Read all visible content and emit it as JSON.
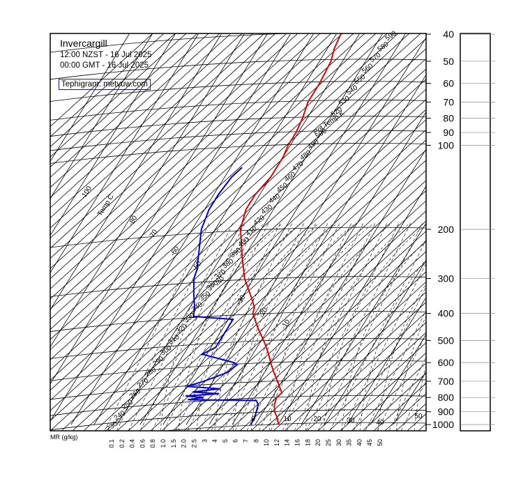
{
  "header": {
    "title": "Invercargill",
    "local_time": "12:00 NZST - 16 Jul 2025",
    "utc_time": "00:00 GMT - 16 Jul 2025",
    "credit": "Tephigram: metvuw.com"
  },
  "chart_data": {
    "type": "line",
    "subtype": "tephigram",
    "pressure_axis": {
      "ticks": [
        40,
        50,
        60,
        70,
        80,
        90,
        100,
        200,
        300,
        400,
        500,
        600,
        700,
        800,
        900,
        1000
      ],
      "range": [
        40,
        1000
      ],
      "scale": "log"
    },
    "mixing_ratio_axis": {
      "label": "MR (g/kg)",
      "ticks": [
        "0.1",
        "0.2",
        "0.4",
        "0.6",
        "0.8",
        "1.0",
        "1.5",
        "2.0",
        "2.5",
        "3",
        "4",
        "5",
        "6",
        "7",
        "8",
        "10",
        "12",
        "14",
        "16",
        "18",
        "20",
        "25",
        "30",
        "35",
        "40",
        "45",
        "50"
      ]
    },
    "isotherm_labels": [
      {
        "value": "-100"
      },
      {
        "value": "Temp C"
      },
      {
        "value": "-80"
      },
      {
        "value": "-70"
      },
      {
        "value": "-60"
      },
      {
        "value": "-50"
      },
      {
        "value": "-40"
      },
      {
        "value": "-30"
      },
      {
        "value": "-20"
      },
      {
        "value": "-10"
      },
      {
        "value": "0"
      },
      {
        "value": "10"
      },
      {
        "value": "20"
      },
      {
        "value": "30"
      },
      {
        "value": "40"
      },
      {
        "value": "50"
      }
    ],
    "isentrope_labels": [
      "590",
      "580",
      "570",
      "560",
      "550",
      "540",
      "530",
      "520",
      "Pot Temp K",
      "500",
      "490",
      "480",
      "470",
      "460",
      "450",
      "440",
      "430",
      "420",
      "410",
      "400",
      "390",
      "380",
      "370",
      "360",
      "350",
      "340",
      "330",
      "320",
      "310",
      "300",
      "290",
      "280",
      "270",
      "260",
      "250",
      "240",
      "230"
    ],
    "series": [
      {
        "color": "#e00000",
        "points": [
          {
            "p": 1000,
            "t": 10
          },
          {
            "p": 950,
            "t": 8
          },
          {
            "p": 900,
            "t": 5
          },
          {
            "p": 850,
            "t": 3
          },
          {
            "p": 800,
            "t": 2
          },
          {
            "p": 770,
            "t": 3
          },
          {
            "p": 700,
            "t": -2
          },
          {
            "p": 650,
            "t": -6
          },
          {
            "p": 600,
            "t": -10
          },
          {
            "p": 550,
            "t": -14
          },
          {
            "p": 500,
            "t": -19
          },
          {
            "p": 450,
            "t": -25
          },
          {
            "p": 400,
            "t": -31
          },
          {
            "p": 380,
            "t": -32
          },
          {
            "p": 350,
            "t": -36
          },
          {
            "p": 300,
            "t": -44
          },
          {
            "p": 250,
            "t": -51
          },
          {
            "p": 200,
            "t": -59
          },
          {
            "p": 170,
            "t": -62
          },
          {
            "p": 150,
            "t": -62
          },
          {
            "p": 130,
            "t": -60
          },
          {
            "p": 110,
            "t": -60
          },
          {
            "p": 100,
            "t": -61
          },
          {
            "p": 90,
            "t": -61
          },
          {
            "p": 80,
            "t": -62
          },
          {
            "p": 70,
            "t": -64
          },
          {
            "p": 60,
            "t": -64
          },
          {
            "p": 50,
            "t": -65
          },
          {
            "p": 45,
            "t": -67
          },
          {
            "p": 40,
            "t": -68
          }
        ]
      },
      {
        "color": "#0000d8",
        "points": [
          {
            "p": 1000,
            "t": -2
          },
          {
            "p": 950,
            "t": -2
          },
          {
            "p": 900,
            "t": -3
          },
          {
            "p": 850,
            "t": -4
          },
          {
            "p": 820,
            "t": -6
          },
          {
            "p": 815,
            "t": -36
          },
          {
            "p": 800,
            "t": -30
          },
          {
            "p": 790,
            "t": -38
          },
          {
            "p": 775,
            "t": -24
          },
          {
            "p": 765,
            "t": -36
          },
          {
            "p": 745,
            "t": -25
          },
          {
            "p": 730,
            "t": -40
          },
          {
            "p": 700,
            "t": -34
          },
          {
            "p": 650,
            "t": -26
          },
          {
            "p": 610,
            "t": -24
          },
          {
            "p": 600,
            "t": -26
          },
          {
            "p": 560,
            "t": -42
          },
          {
            "p": 530,
            "t": -38
          },
          {
            "p": 500,
            "t": -38
          },
          {
            "p": 450,
            "t": -38
          },
          {
            "p": 420,
            "t": -38
          },
          {
            "p": 410,
            "t": -56
          },
          {
            "p": 380,
            "t": -58
          },
          {
            "p": 340,
            "t": -62
          },
          {
            "p": 300,
            "t": -66
          },
          {
            "p": 280,
            "t": -67
          },
          {
            "p": 250,
            "t": -70
          },
          {
            "p": 200,
            "t": -76
          },
          {
            "p": 170,
            "t": -78
          },
          {
            "p": 150,
            "t": -78
          },
          {
            "p": 130,
            "t": -77
          },
          {
            "p": 120,
            "t": -75
          }
        ]
      }
    ]
  }
}
